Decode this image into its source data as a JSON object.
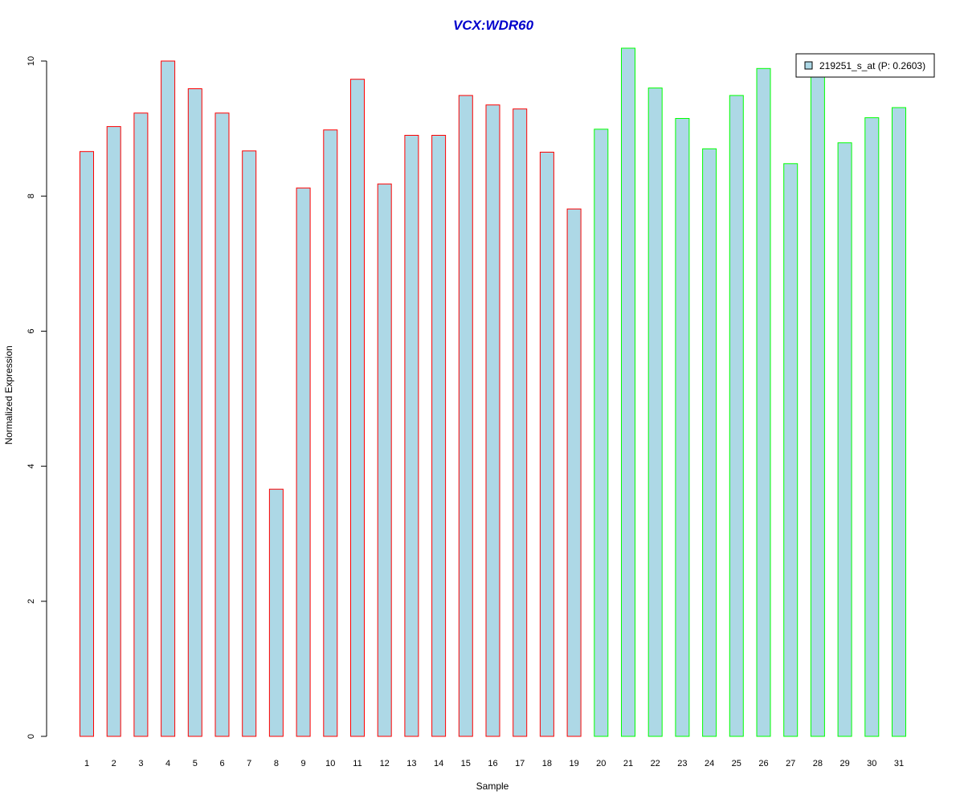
{
  "chart_data": {
    "type": "bar",
    "title": "VCX:WDR60",
    "xlabel": "Sample",
    "ylabel": "Normalized Expression",
    "ylim": [
      0,
      10.2
    ],
    "yticks": [
      0,
      2,
      4,
      6,
      8,
      10
    ],
    "grid": false,
    "legend_position": "top-right",
    "categories": [
      "1",
      "2",
      "3",
      "4",
      "5",
      "6",
      "7",
      "8",
      "9",
      "10",
      "11",
      "12",
      "13",
      "14",
      "15",
      "16",
      "17",
      "18",
      "19",
      "20",
      "21",
      "22",
      "23",
      "24",
      "25",
      "26",
      "27",
      "28",
      "29",
      "30",
      "31"
    ],
    "series": [
      {
        "name": "219251_s_at (P: 0.2603)",
        "values": [
          8.66,
          9.03,
          9.23,
          10.0,
          9.59,
          9.23,
          8.67,
          3.66,
          8.12,
          8.98,
          9.73,
          8.18,
          8.9,
          8.9,
          9.49,
          9.35,
          9.29,
          8.65,
          7.81,
          8.99,
          10.19,
          9.6,
          9.15,
          8.7,
          9.49,
          9.89,
          8.48,
          9.85,
          8.79,
          9.16,
          9.31
        ],
        "fill": "#ADD8E6",
        "group_border_colors": [
          "#FF0000",
          "#FF0000",
          "#FF0000",
          "#FF0000",
          "#FF0000",
          "#FF0000",
          "#FF0000",
          "#FF0000",
          "#FF0000",
          "#FF0000",
          "#FF0000",
          "#FF0000",
          "#FF0000",
          "#FF0000",
          "#FF0000",
          "#FF0000",
          "#FF0000",
          "#FF0000",
          "#FF0000",
          "#00FF00",
          "#00FF00",
          "#00FF00",
          "#00FF00",
          "#00FF00",
          "#00FF00",
          "#00FF00",
          "#00FF00",
          "#00FF00",
          "#00FF00",
          "#00FF00",
          "#00FF00"
        ]
      }
    ],
    "title_color": "#0000CC",
    "legend_swatch_fill": "#ADD8E6",
    "legend_swatch_border": "#000000"
  }
}
